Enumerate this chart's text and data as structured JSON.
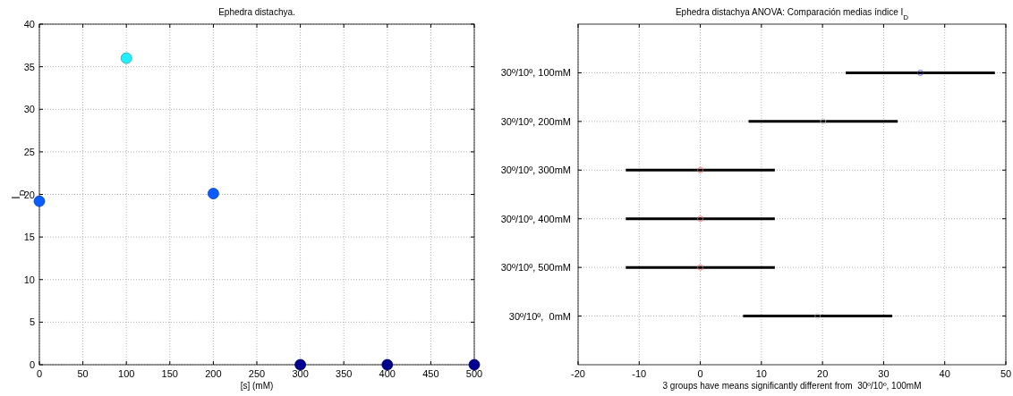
{
  "chart_data": [
    {
      "type": "scatter",
      "title": "Ephedra distachya.",
      "xlabel": "[s] (mM)",
      "ylabel": "I$_{D}$",
      "x": [
        0,
        100,
        200,
        300,
        400,
        500
      ],
      "values": [
        19.2,
        36,
        20.1,
        0,
        0,
        0
      ],
      "colors": [
        "#0a5cff",
        "#22eeff",
        "#0a5cff",
        "#00008f",
        "#00008f",
        "#00008f"
      ],
      "xlim": [
        0,
        500
      ],
      "ylim": [
        0,
        40
      ],
      "xticks": [
        0,
        50,
        100,
        150,
        200,
        250,
        300,
        350,
        400,
        450,
        500
      ],
      "yticks": [
        0,
        5,
        10,
        15,
        20,
        25,
        30,
        35,
        40
      ],
      "grid": true,
      "marker": "circle"
    },
    {
      "type": "scatter",
      "orientation": "horizontal",
      "title": "Ephedra distachya ANOVA: Comparación medias índice I$_{D}$",
      "xlabel": "3 groups have means significantly different from  30º/10º, 100mM",
      "categories": [
        "30º/10º, 100mM",
        "30º/10º, 200mM",
        "30º/10º, 300mM",
        "30º/10º, 400mM",
        "30º/10º, 500mM",
        "30º/10º,  0mM"
      ],
      "values": [
        36,
        20.1,
        0,
        0,
        0,
        19.2
      ],
      "errors": [
        [
          23.8,
          48.2
        ],
        [
          7.9,
          32.3
        ],
        [
          -12.2,
          12.2
        ],
        [
          -12.2,
          12.2
        ],
        [
          -12.2,
          12.2
        ],
        [
          7,
          31.4
        ]
      ],
      "colors": [
        "#4040ff",
        "#c8c8c8",
        "#ff6060",
        "#ff6060",
        "#ff6060",
        "#c8c8c8"
      ],
      "xlim": [
        -20,
        50
      ],
      "xticks": [
        -20,
        -10,
        0,
        10,
        20,
        30,
        40,
        50
      ],
      "grid": true,
      "marker": "circle"
    }
  ]
}
